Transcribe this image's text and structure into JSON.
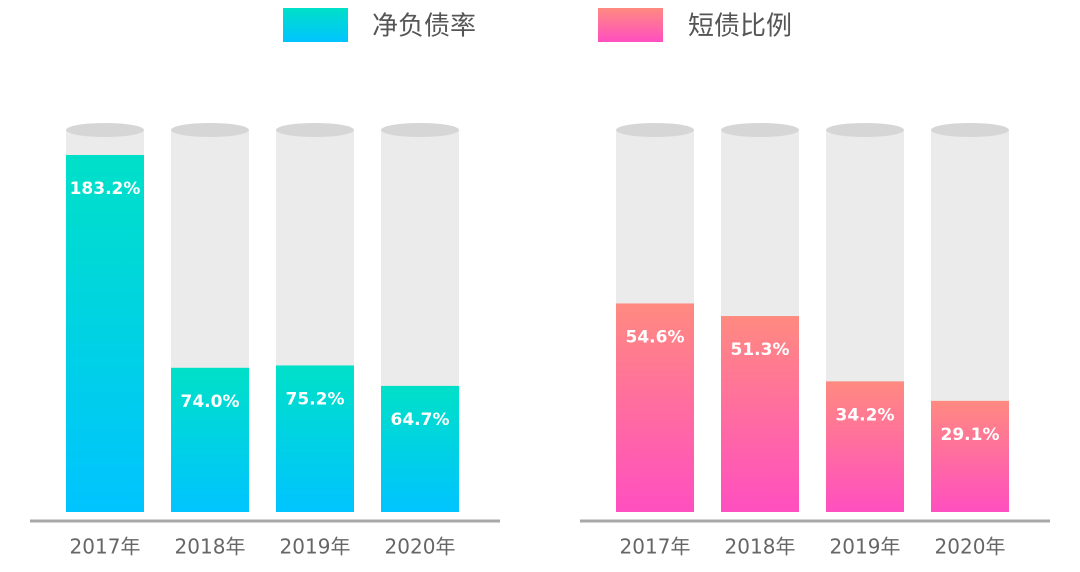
{
  "chart_data": [
    {
      "type": "bar",
      "categories": [
        "2017年",
        "2018年",
        "2019年",
        "2020年"
      ],
      "series": [
        {
          "name": "净负债率",
          "color": [
            "#00e0c8",
            "#00c4ff"
          ],
          "values": [
            183.2,
            74.0,
            75.2,
            64.7
          ],
          "value_labels": [
            "183.2%",
            "74.0%",
            "75.2%",
            "64.7%"
          ]
        }
      ]
    },
    {
      "type": "bar",
      "categories": [
        "2017年",
        "2018年",
        "2019年",
        "2020年"
      ],
      "series": [
        {
          "name": "短债比例",
          "color": [
            "#ff8a80",
            "#ff4fc0"
          ],
          "values": [
            54.6,
            51.3,
            34.2,
            29.1
          ],
          "value_labels": [
            "54.6%",
            "51.3%",
            "34.2%",
            "29.1%"
          ]
        }
      ]
    }
  ]
}
